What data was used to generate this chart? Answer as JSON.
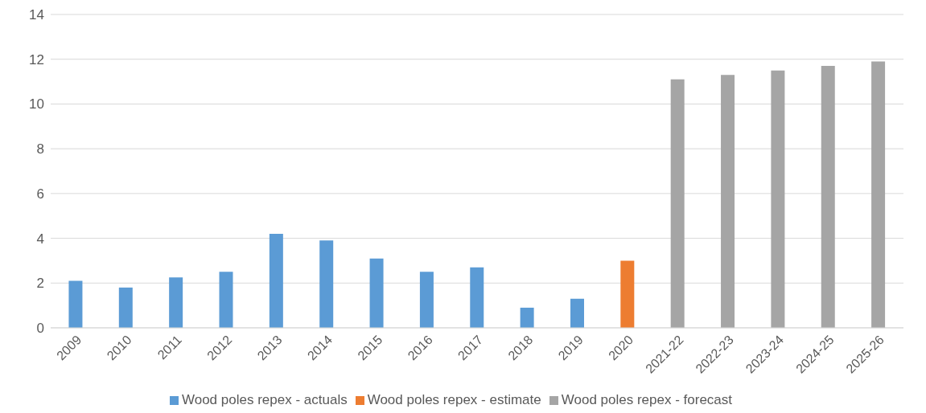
{
  "chart_data": {
    "type": "bar",
    "categories": [
      "2009",
      "2010",
      "2011",
      "2012",
      "2013",
      "2014",
      "2015",
      "2016",
      "2017",
      "2018",
      "2019",
      "2020",
      "2021-22",
      "2022-23",
      "2023-24",
      "2024-25",
      "2025-26"
    ],
    "series": [
      {
        "name": "Wood poles repex - actuals",
        "color": "#5b9bd5",
        "values": [
          2.1,
          1.8,
          2.25,
          2.5,
          4.2,
          3.9,
          3.1,
          2.5,
          2.7,
          0.9,
          1.3,
          null,
          null,
          null,
          null,
          null,
          null
        ]
      },
      {
        "name": "Wood poles repex - estimate",
        "color": "#ed7d31",
        "values": [
          null,
          null,
          null,
          null,
          null,
          null,
          null,
          null,
          null,
          null,
          null,
          3.0,
          null,
          null,
          null,
          null,
          null
        ]
      },
      {
        "name": "Wood poles repex - forecast",
        "color": "#a5a5a5",
        "values": [
          null,
          null,
          null,
          null,
          null,
          null,
          null,
          null,
          null,
          null,
          null,
          null,
          11.1,
          11.3,
          11.5,
          11.7,
          11.9
        ]
      }
    ],
    "ylim": [
      0,
      14
    ],
    "yticks": [
      0,
      2,
      4,
      6,
      8,
      10,
      12,
      14
    ],
    "grid": "y",
    "legend": "bottom"
  }
}
